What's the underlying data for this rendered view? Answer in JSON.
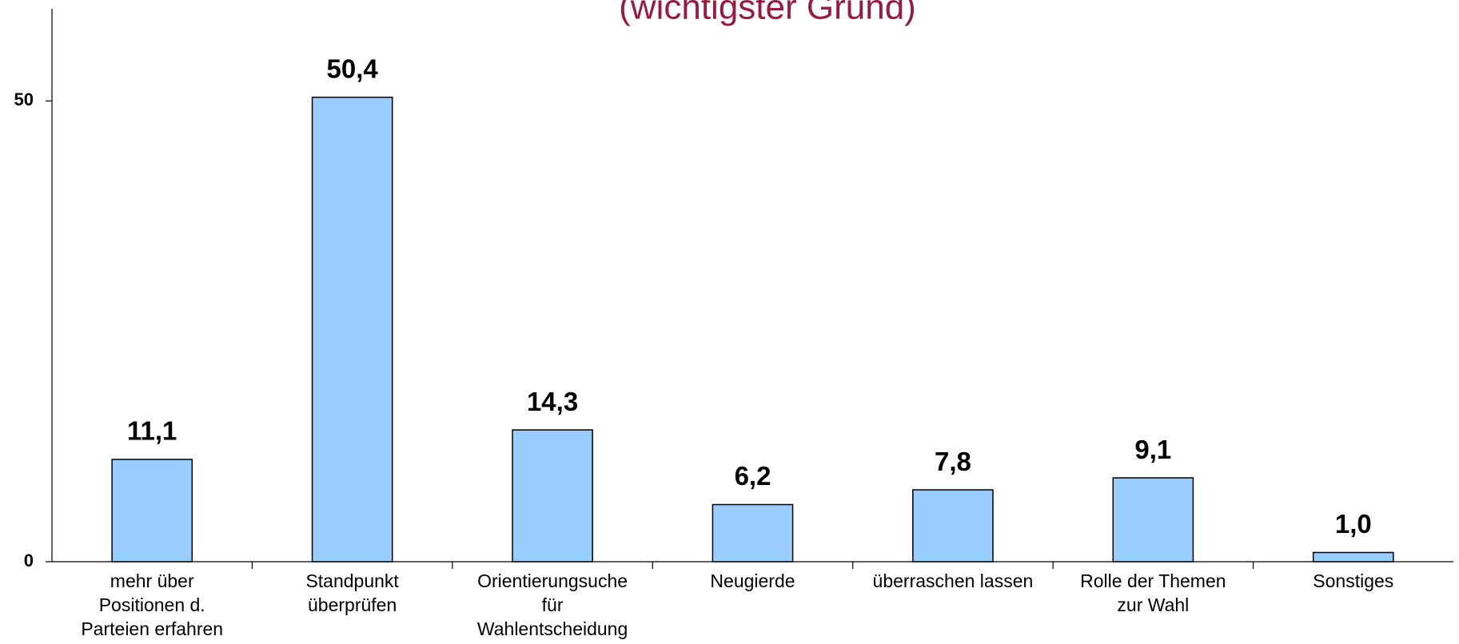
{
  "chart_data": {
    "type": "bar",
    "title": "(wichtigster Grund)",
    "categories": [
      [
        "mehr über",
        "Positionen d.",
        "Parteien erfahren"
      ],
      [
        "Standpunkt",
        "überprüfen"
      ],
      [
        "Orientierungsuche",
        "für",
        "Wahlentscheidung"
      ],
      [
        "Neugierde"
      ],
      [
        "überraschen lassen"
      ],
      [
        "Rolle der Themen",
        "zur Wahl"
      ],
      [
        "Sonstiges"
      ]
    ],
    "values": [
      11.1,
      50.4,
      14.3,
      6.2,
      7.8,
      9.1,
      1.0
    ],
    "value_labels": [
      "11,1",
      "50,4",
      "14,3",
      "6,2",
      "7,8",
      "9,1",
      "1,0"
    ],
    "color": "#99ccff",
    "title_color": "#9b1b3f",
    "ylim": [
      0,
      60
    ],
    "yticks": [
      0,
      50
    ],
    "grid": false
  }
}
